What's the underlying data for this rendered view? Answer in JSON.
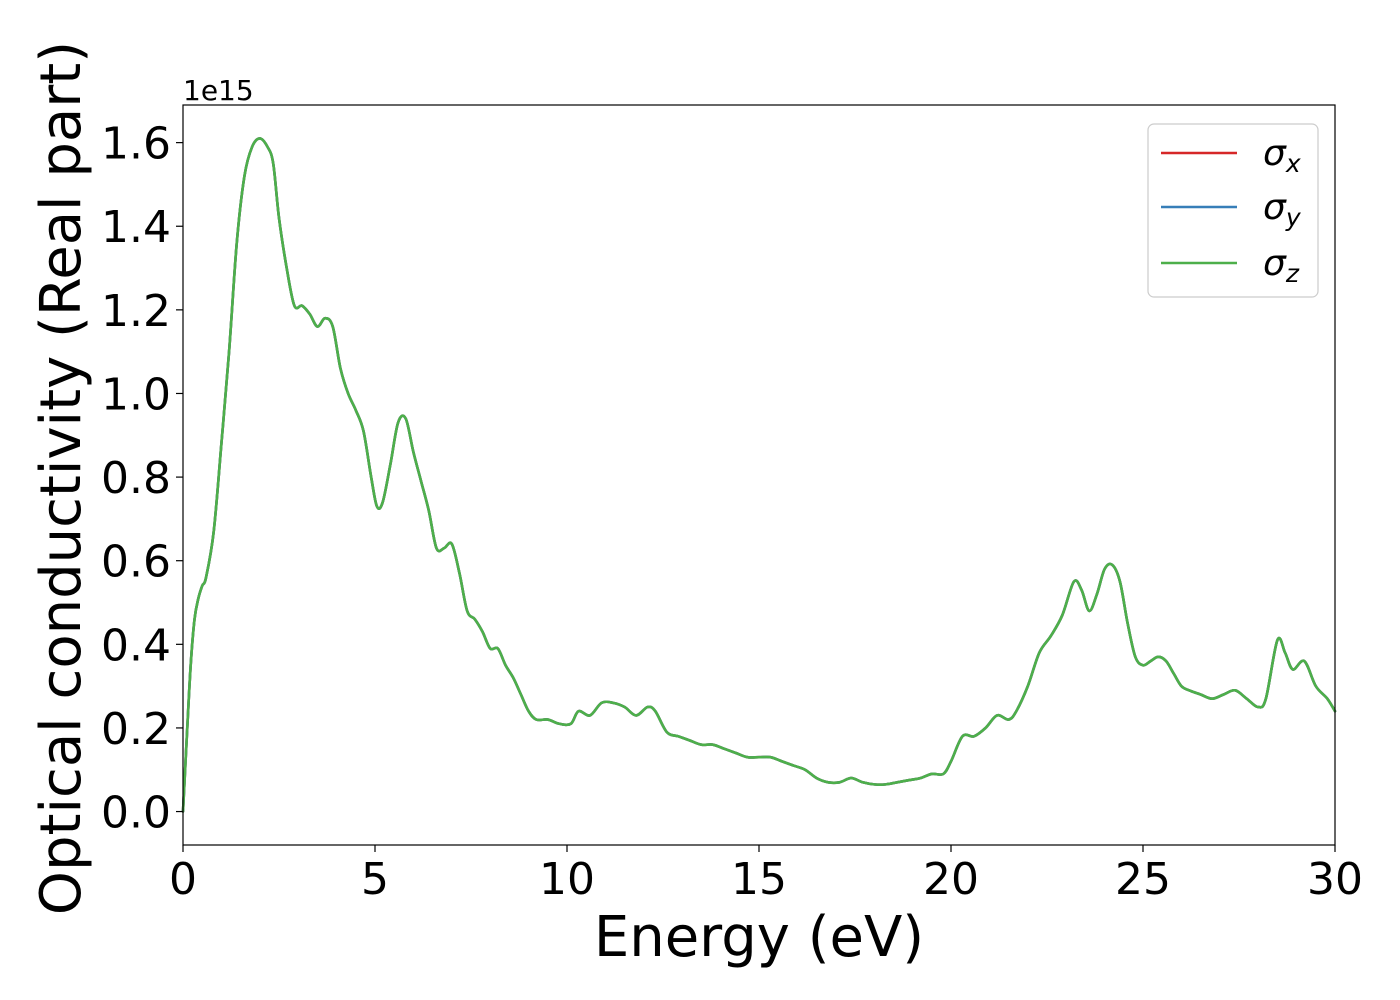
{
  "chart_data": {
    "type": "line",
    "title": "",
    "xlabel": "Energy (eV)",
    "ylabel": "Optical conductivity (Real part)",
    "y_offset_label": "1e15",
    "y_scale_multiplier": 1000000000000000.0,
    "xlim": [
      0,
      30
    ],
    "ylim": [
      -0.08,
      1.69
    ],
    "grid": false,
    "legend_position": "top-right",
    "x_ticks": [
      0,
      5,
      10,
      15,
      20,
      25,
      30
    ],
    "x_tick_labels": [
      "0",
      "5",
      "10",
      "15",
      "20",
      "25",
      "30"
    ],
    "y_ticks": [
      0.0,
      0.2,
      0.4,
      0.6,
      0.8,
      1.0,
      1.2,
      1.4,
      1.6
    ],
    "y_tick_labels": [
      "0.0",
      "0.2",
      "0.4",
      "0.6",
      "0.8",
      "1.0",
      "1.2",
      "1.4",
      "1.6"
    ],
    "x": [
      0.0,
      0.1,
      0.2,
      0.3,
      0.4,
      0.5,
      0.6,
      0.8,
      1.0,
      1.2,
      1.4,
      1.6,
      1.8,
      2.0,
      2.2,
      2.35,
      2.5,
      2.7,
      2.9,
      3.1,
      3.3,
      3.5,
      3.7,
      3.9,
      4.1,
      4.3,
      4.5,
      4.7,
      4.9,
      5.05,
      5.2,
      5.4,
      5.6,
      5.8,
      6.0,
      6.2,
      6.4,
      6.6,
      6.8,
      7.0,
      7.2,
      7.4,
      7.6,
      7.8,
      8.0,
      8.2,
      8.4,
      8.6,
      8.8,
      9.0,
      9.2,
      9.5,
      9.8,
      10.1,
      10.3,
      10.6,
      10.9,
      11.2,
      11.5,
      11.8,
      12.1,
      12.3,
      12.6,
      12.9,
      13.2,
      13.5,
      13.8,
      14.1,
      14.4,
      14.7,
      15.0,
      15.3,
      15.6,
      15.9,
      16.2,
      16.5,
      16.8,
      17.1,
      17.4,
      17.7,
      18.0,
      18.3,
      18.6,
      18.9,
      19.2,
      19.5,
      19.8,
      20.0,
      20.3,
      20.6,
      20.9,
      21.2,
      21.5,
      21.7,
      22.0,
      22.3,
      22.6,
      22.9,
      23.2,
      23.4,
      23.6,
      23.8,
      24.0,
      24.2,
      24.4,
      24.6,
      24.8,
      25.0,
      25.2,
      25.4,
      25.6,
      25.8,
      26.0,
      26.2,
      26.5,
      26.8,
      27.1,
      27.4,
      27.7,
      28.0,
      28.2,
      28.5,
      28.7,
      28.9,
      29.2,
      29.5,
      29.8,
      30.0
    ],
    "series": [
      {
        "name": "σx",
        "color": "#d62728",
        "values": [
          0.0,
          0.18,
          0.35,
          0.46,
          0.51,
          0.54,
          0.56,
          0.67,
          0.88,
          1.1,
          1.36,
          1.52,
          1.59,
          1.61,
          1.59,
          1.55,
          1.42,
          1.3,
          1.21,
          1.21,
          1.19,
          1.16,
          1.18,
          1.16,
          1.06,
          1.0,
          0.96,
          0.91,
          0.8,
          0.73,
          0.74,
          0.83,
          0.93,
          0.94,
          0.86,
          0.79,
          0.72,
          0.63,
          0.63,
          0.64,
          0.57,
          0.48,
          0.46,
          0.43,
          0.39,
          0.39,
          0.35,
          0.32,
          0.28,
          0.24,
          0.22,
          0.22,
          0.21,
          0.21,
          0.24,
          0.23,
          0.26,
          0.26,
          0.25,
          0.23,
          0.25,
          0.24,
          0.19,
          0.18,
          0.17,
          0.16,
          0.16,
          0.15,
          0.14,
          0.13,
          0.13,
          0.13,
          0.12,
          0.11,
          0.1,
          0.08,
          0.07,
          0.07,
          0.08,
          0.07,
          0.065,
          0.065,
          0.07,
          0.075,
          0.08,
          0.09,
          0.09,
          0.12,
          0.18,
          0.18,
          0.2,
          0.23,
          0.22,
          0.24,
          0.3,
          0.38,
          0.42,
          0.47,
          0.55,
          0.53,
          0.48,
          0.52,
          0.58,
          0.59,
          0.55,
          0.45,
          0.37,
          0.35,
          0.36,
          0.37,
          0.36,
          0.33,
          0.3,
          0.29,
          0.28,
          0.27,
          0.28,
          0.29,
          0.27,
          0.25,
          0.27,
          0.41,
          0.38,
          0.34,
          0.36,
          0.3,
          0.27,
          0.24
        ]
      },
      {
        "name": "σy",
        "color": "#377eb8",
        "values": [
          0.0,
          0.18,
          0.35,
          0.46,
          0.51,
          0.54,
          0.56,
          0.67,
          0.88,
          1.1,
          1.36,
          1.52,
          1.59,
          1.61,
          1.59,
          1.55,
          1.42,
          1.3,
          1.21,
          1.21,
          1.19,
          1.16,
          1.18,
          1.16,
          1.06,
          1.0,
          0.96,
          0.91,
          0.8,
          0.73,
          0.74,
          0.83,
          0.93,
          0.94,
          0.86,
          0.79,
          0.72,
          0.63,
          0.63,
          0.64,
          0.57,
          0.48,
          0.46,
          0.43,
          0.39,
          0.39,
          0.35,
          0.32,
          0.28,
          0.24,
          0.22,
          0.22,
          0.21,
          0.21,
          0.24,
          0.23,
          0.26,
          0.26,
          0.25,
          0.23,
          0.25,
          0.24,
          0.19,
          0.18,
          0.17,
          0.16,
          0.16,
          0.15,
          0.14,
          0.13,
          0.13,
          0.13,
          0.12,
          0.11,
          0.1,
          0.08,
          0.07,
          0.07,
          0.08,
          0.07,
          0.065,
          0.065,
          0.07,
          0.075,
          0.08,
          0.09,
          0.09,
          0.12,
          0.18,
          0.18,
          0.2,
          0.23,
          0.22,
          0.24,
          0.3,
          0.38,
          0.42,
          0.47,
          0.55,
          0.53,
          0.48,
          0.52,
          0.58,
          0.59,
          0.55,
          0.45,
          0.37,
          0.35,
          0.36,
          0.37,
          0.36,
          0.33,
          0.3,
          0.29,
          0.28,
          0.27,
          0.28,
          0.29,
          0.27,
          0.25,
          0.27,
          0.41,
          0.38,
          0.34,
          0.36,
          0.3,
          0.27,
          0.24
        ]
      },
      {
        "name": "σz",
        "color": "#4daf4a",
        "values": [
          0.0,
          0.18,
          0.35,
          0.46,
          0.51,
          0.54,
          0.56,
          0.67,
          0.88,
          1.1,
          1.36,
          1.52,
          1.59,
          1.61,
          1.59,
          1.55,
          1.42,
          1.3,
          1.21,
          1.21,
          1.19,
          1.16,
          1.18,
          1.16,
          1.06,
          1.0,
          0.96,
          0.91,
          0.8,
          0.73,
          0.74,
          0.83,
          0.93,
          0.94,
          0.86,
          0.79,
          0.72,
          0.63,
          0.63,
          0.64,
          0.57,
          0.48,
          0.46,
          0.43,
          0.39,
          0.39,
          0.35,
          0.32,
          0.28,
          0.24,
          0.22,
          0.22,
          0.21,
          0.21,
          0.24,
          0.23,
          0.26,
          0.26,
          0.25,
          0.23,
          0.25,
          0.24,
          0.19,
          0.18,
          0.17,
          0.16,
          0.16,
          0.15,
          0.14,
          0.13,
          0.13,
          0.13,
          0.12,
          0.11,
          0.1,
          0.08,
          0.07,
          0.07,
          0.08,
          0.07,
          0.065,
          0.065,
          0.07,
          0.075,
          0.08,
          0.09,
          0.09,
          0.12,
          0.18,
          0.18,
          0.2,
          0.23,
          0.22,
          0.24,
          0.3,
          0.38,
          0.42,
          0.47,
          0.55,
          0.53,
          0.48,
          0.52,
          0.58,
          0.59,
          0.55,
          0.45,
          0.37,
          0.35,
          0.36,
          0.37,
          0.36,
          0.33,
          0.3,
          0.29,
          0.28,
          0.27,
          0.28,
          0.29,
          0.27,
          0.25,
          0.27,
          0.41,
          0.38,
          0.34,
          0.36,
          0.3,
          0.27,
          0.24
        ]
      }
    ],
    "legend": [
      {
        "symbol": "σ",
        "sub": "x"
      },
      {
        "symbol": "σ",
        "sub": "y"
      },
      {
        "symbol": "σ",
        "sub": "z"
      }
    ]
  }
}
